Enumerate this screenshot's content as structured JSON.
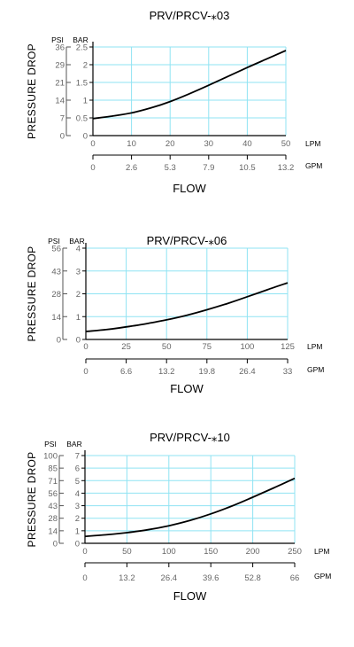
{
  "chart_data": [
    {
      "type": "line",
      "title": "PRV/PRCV-⁎03",
      "ylabel": "PRESSURE DROP",
      "xlabel": "FLOW",
      "psi_unit": "PSI",
      "bar_unit": "BAR",
      "lpm_unit": "LPM",
      "gpm_unit": "GPM",
      "psi_ticks": [
        "36",
        "29",
        "21",
        "14",
        "7",
        "0"
      ],
      "bar_ticks": [
        "2.5",
        "2",
        "1.5",
        "1",
        "0.5",
        "0"
      ],
      "lpm_ticks": [
        "0",
        "10",
        "20",
        "30",
        "40",
        "50"
      ],
      "gpm_ticks": [
        "0",
        "2.6",
        "5.3",
        "7.9",
        "10.5",
        "13.2"
      ],
      "xlim": [
        0,
        50
      ],
      "ylim": [
        0,
        2.5
      ],
      "grid": true,
      "series": [
        {
          "x": [
            0,
            5,
            10,
            15,
            20,
            25,
            30,
            35,
            40,
            45,
            50
          ],
          "y": [
            0.48,
            0.55,
            0.64,
            0.78,
            0.96,
            1.18,
            1.42,
            1.67,
            1.92,
            2.16,
            2.4
          ]
        }
      ]
    },
    {
      "type": "line",
      "title": "PRV/PRCV-⁎06",
      "ylabel": "PRESSURE DROP",
      "xlabel": "FLOW",
      "psi_unit": "PSI",
      "bar_unit": "BAR",
      "lpm_unit": "LPM",
      "gpm_unit": "GPM",
      "psi_ticks": [
        "56",
        "43",
        "28",
        "14",
        "0"
      ],
      "bar_ticks": [
        "4",
        "3",
        "2",
        "1",
        "0"
      ],
      "lpm_ticks": [
        "0",
        "25",
        "50",
        "75",
        "100",
        "125"
      ],
      "gpm_ticks": [
        "0",
        "6.6",
        "13.2",
        "19.8",
        "26.4",
        "33"
      ],
      "xlim": [
        0,
        125
      ],
      "ylim": [
        0,
        4
      ],
      "grid": true,
      "series": [
        {
          "x": [
            0,
            12.5,
            25,
            37.5,
            50,
            62.5,
            75,
            87.5,
            100,
            112.5,
            125
          ],
          "y": [
            0.35,
            0.43,
            0.55,
            0.69,
            0.86,
            1.06,
            1.3,
            1.57,
            1.87,
            2.18,
            2.48
          ]
        }
      ]
    },
    {
      "type": "line",
      "title": "PRV/PRCV-⁎10",
      "ylabel": "PRESSURE DROP",
      "xlabel": "FLOW",
      "psi_unit": "PSI",
      "bar_unit": "BAR",
      "lpm_unit": "LPM",
      "gpm_unit": "GPM",
      "psi_ticks": [
        "100",
        "85",
        "71",
        "56",
        "43",
        "28",
        "14",
        "0"
      ],
      "bar_ticks": [
        "7",
        "6",
        "5",
        "4",
        "3",
        "2",
        "1",
        "0"
      ],
      "lpm_ticks": [
        "0",
        "50",
        "100",
        "150",
        "200",
        "250"
      ],
      "gpm_ticks": [
        "0",
        "13.2",
        "26.4",
        "39.6",
        "52.8",
        "66"
      ],
      "xlim": [
        0,
        250
      ],
      "ylim": [
        0,
        7
      ],
      "grid": true,
      "series": [
        {
          "x": [
            0,
            25,
            50,
            75,
            100,
            125,
            150,
            175,
            200,
            225,
            250
          ],
          "y": [
            0.55,
            0.68,
            0.85,
            1.08,
            1.4,
            1.82,
            2.35,
            2.97,
            3.68,
            4.42,
            5.18
          ]
        }
      ]
    }
  ]
}
